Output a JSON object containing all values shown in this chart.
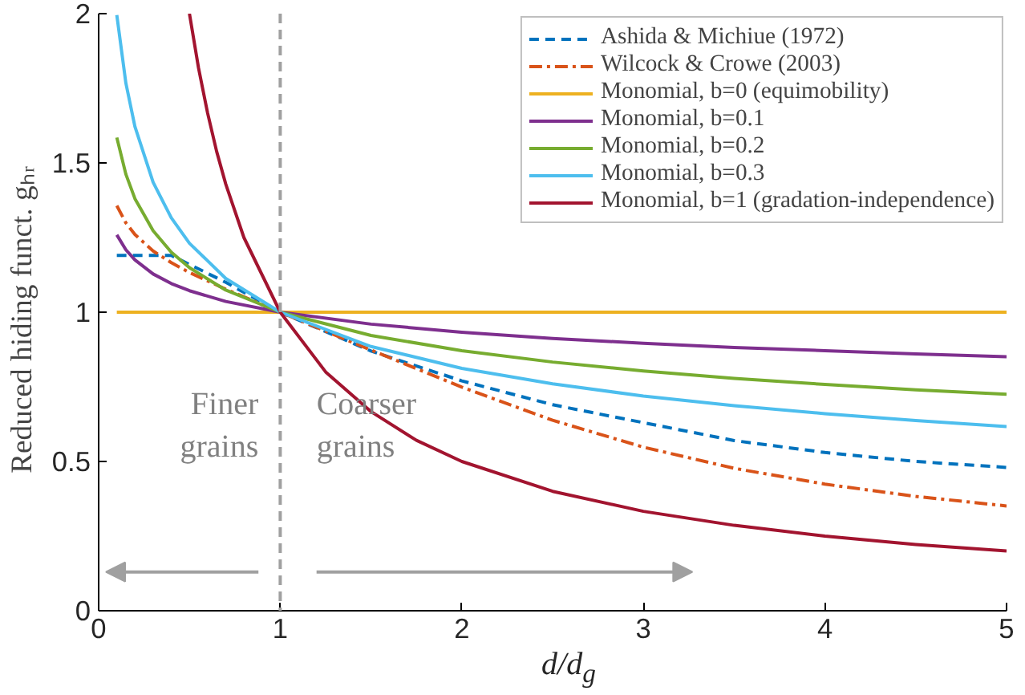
{
  "chart_data": {
    "type": "line",
    "xlabel": "d/d$_{g}$",
    "ylabel": "Reduced hiding funct.   gₕᵣ",
    "xlim": [
      0,
      5
    ],
    "ylim": [
      0,
      2
    ],
    "xticks": [
      0,
      1,
      2,
      3,
      4,
      5
    ],
    "yticks": [
      0,
      0.5,
      1,
      1.5,
      2
    ],
    "grid": false,
    "legend": "top right",
    "x": [
      0.1,
      0.15,
      0.2,
      0.3,
      0.4,
      0.5,
      0.7,
      1,
      1.5,
      2,
      2.5,
      3,
      3.5,
      4,
      4.5,
      5
    ],
    "series": [
      {
        "name": "Ashida & Michiue (1972)",
        "color": "#0072bd",
        "line_style": "dashed",
        "values": [
          1.19,
          1.19,
          1.19,
          1.19,
          1.19,
          1.16,
          1.1,
          1.0,
          0.87,
          0.77,
          0.69,
          0.63,
          0.57,
          0.53,
          0.5,
          0.48
        ]
      },
      {
        "name": "Wilcock & Crowe (2003)",
        "color": "#d95319",
        "line_style": "dashdot",
        "values": [
          1.357,
          1.299,
          1.26,
          1.205,
          1.166,
          1.133,
          1.077,
          1.0,
          0.873,
          0.749,
          0.638,
          0.548,
          0.477,
          0.424,
          0.383,
          0.351
        ]
      },
      {
        "name": "Monomial, b=0 (equimobility)",
        "color": "#edb120",
        "x": [
          0.1,
          5
        ],
        "values": [
          1,
          1
        ]
      },
      {
        "name": "Monomial, b=0.1",
        "color": "#7e2f8e",
        "values": [
          1.259,
          1.209,
          1.175,
          1.128,
          1.096,
          1.072,
          1.036,
          1.0,
          0.96,
          0.933,
          0.912,
          0.896,
          0.882,
          0.871,
          0.86,
          0.851
        ]
      },
      {
        "name": "Monomial, b=0.2",
        "color": "#77ac30",
        "values": [
          1.585,
          1.462,
          1.38,
          1.273,
          1.201,
          1.149,
          1.074,
          1.0,
          0.922,
          0.871,
          0.833,
          0.803,
          0.778,
          0.758,
          0.74,
          0.725
        ]
      },
      {
        "name": "Monomial, b=0.3",
        "color": "#4dbeee",
        "values": [
          1.995,
          1.767,
          1.621,
          1.435,
          1.316,
          1.231,
          1.113,
          1.0,
          0.885,
          0.812,
          0.76,
          0.719,
          0.687,
          0.66,
          0.637,
          0.617
        ]
      },
      {
        "name": "Monomial, b=1 (gradation-independence)",
        "color": "#a2142f",
        "x": [
          0.5,
          0.55,
          0.6,
          0.65,
          0.7,
          0.8,
          1,
          1.25,
          1.5,
          1.75,
          2,
          2.5,
          3,
          3.5,
          4,
          4.5,
          5
        ],
        "values": [
          2,
          1.818,
          1.667,
          1.538,
          1.429,
          1.25,
          1,
          0.8,
          0.667,
          0.571,
          0.5,
          0.4,
          0.333,
          0.286,
          0.25,
          0.222,
          0.2
        ]
      }
    ],
    "ref_lines": [
      {
        "axis": "x",
        "value": 1,
        "label": null,
        "color": "#a0a0a0",
        "line_style": "dashed"
      }
    ],
    "annotations": [
      "Finer\ngrains",
      "Coarser\ngrains"
    ]
  }
}
